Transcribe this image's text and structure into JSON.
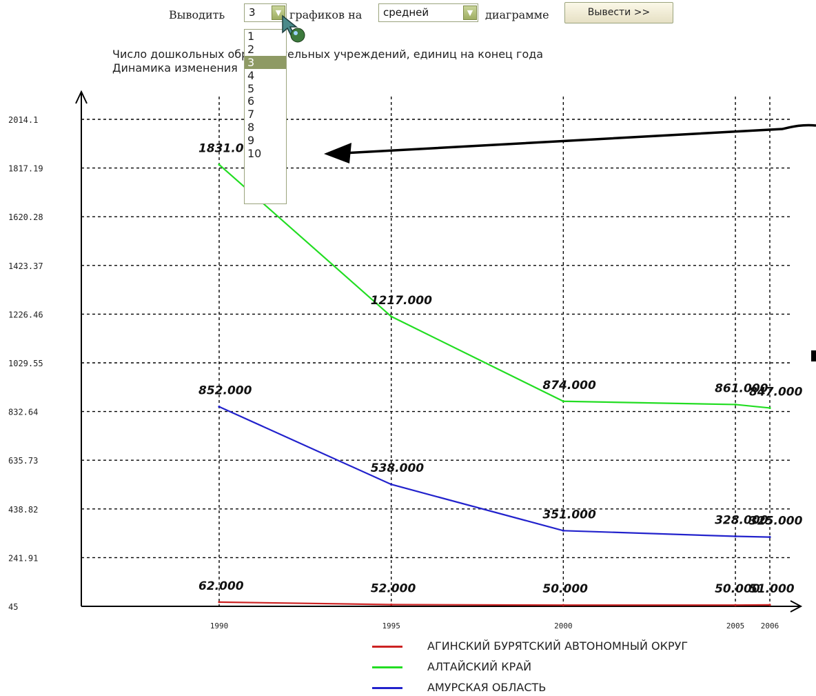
{
  "toolbar": {
    "show_label": "Выводить",
    "count_value": "3",
    "graphs_label": "графиков на",
    "size_value": "средней",
    "diagram_label": "диаграмме",
    "submit_label": "Вывести >>"
  },
  "captions": {
    "line1": "Число дошкольных образовательных учреждений, единиц на конец года",
    "line2": "Динамика изменения"
  },
  "dropdown": {
    "options": [
      "1",
      "2",
      "3",
      "4",
      "5",
      "6",
      "7",
      "8",
      "9",
      "10"
    ],
    "selected_index": 2
  },
  "colors": {
    "accent": "#9fae63",
    "selected": "#8e9a64",
    "grid": "#000000"
  },
  "chart_data": {
    "type": "line",
    "x": [
      1990,
      1995,
      2000,
      2005,
      2006
    ],
    "x_tick_labels": [
      "1990",
      "1995",
      "2000",
      "2005",
      "2006"
    ],
    "y_tick_labels": [
      "2014.1",
      "1817.19",
      "1620.28",
      "1423.37",
      "1226.46",
      "1029.55",
      "832.64",
      "635.73",
      "438.82",
      "241.91",
      "45"
    ],
    "ylim": [
      45,
      2014.1
    ],
    "grid": true,
    "legend_position": "bottom",
    "series": [
      {
        "name": "АГИНСКИЙ БУРЯТСКИЙ АВТОНОМНЫЙ ОКРУГ",
        "color": "#cc2222",
        "values": [
          62,
          52,
          50,
          50,
          51
        ],
        "labels": [
          "62.000",
          "52.000",
          "50.000",
          "50.000",
          "51.000"
        ]
      },
      {
        "name": "АЛТАЙСКИЙ КРАЙ",
        "color": "#22dd22",
        "values": [
          1831,
          1217,
          874,
          861,
          847
        ],
        "labels": [
          "1831.000",
          "1217.000",
          "874.000",
          "861.000",
          "847.000"
        ]
      },
      {
        "name": "АМУРСКАЯ ОБЛАСТЬ",
        "color": "#2222cc",
        "values": [
          852,
          538,
          351,
          328,
          325
        ],
        "labels": [
          "852.000",
          "538.000",
          "351.000",
          "328.000",
          "325.000"
        ]
      }
    ]
  }
}
